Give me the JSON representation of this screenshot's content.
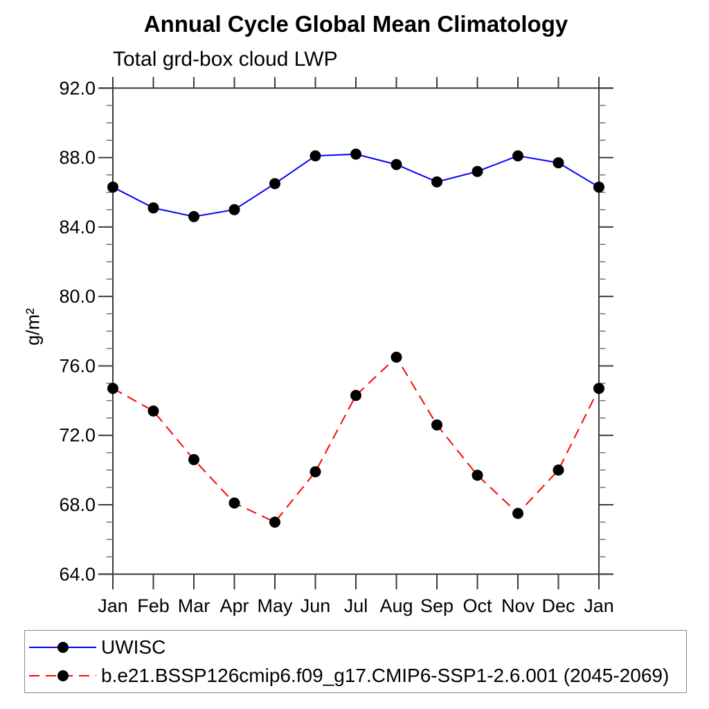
{
  "chart_data": {
    "type": "line",
    "title": "Annual Cycle Global Mean Climatology",
    "subtitle": "Total grd-box cloud LWP",
    "ylabel": "g/m²",
    "categories": [
      "Jan",
      "Feb",
      "Mar",
      "Apr",
      "May",
      "Jun",
      "Jul",
      "Aug",
      "Sep",
      "Oct",
      "Nov",
      "Dec",
      "Jan"
    ],
    "ylim": [
      64.0,
      92.0
    ],
    "ytick_major_values": [
      92,
      88,
      84,
      80,
      76,
      72,
      68,
      64
    ],
    "ytick_major_labels": [
      "92.0",
      "88.0",
      "84.0",
      "80.0",
      "76.0",
      "72.0",
      "68.0",
      "64.0"
    ],
    "ytick_minor_step": 1,
    "grid": false,
    "legend_position": "bottom",
    "axis_color": "#3a3a3a",
    "minor_tick_color": "#6a6a6a",
    "text_color": "#000000",
    "series": [
      {
        "name": "UWISC",
        "color": "#0000ff",
        "style": "solid",
        "marker": "circle",
        "marker_color": "#000000",
        "values": [
          86.3,
          85.1,
          84.6,
          85.0,
          86.5,
          88.1,
          88.2,
          87.6,
          86.6,
          87.2,
          88.1,
          87.7,
          86.3
        ]
      },
      {
        "name": "b.e21.BSSP126cmip6.f09_g17.CMIP6-SSP1-2.6.001 (2045-2069)",
        "color": "#ff0000",
        "style": "dashed",
        "marker": "circle",
        "marker_color": "#000000",
        "values": [
          74.7,
          73.4,
          70.6,
          68.1,
          67.0,
          69.9,
          74.3,
          76.5,
          72.6,
          69.7,
          67.5,
          70.0,
          74.7
        ]
      }
    ]
  }
}
